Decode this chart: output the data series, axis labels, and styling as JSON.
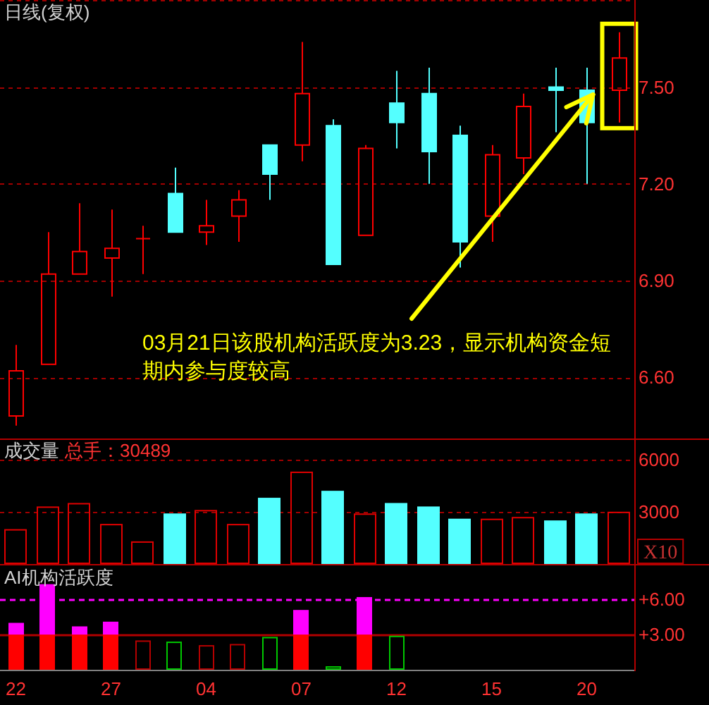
{
  "chart_data": [
    {
      "type": "candlestick",
      "title": "日线(复权)",
      "categories": [
        null,
        null,
        null,
        null,
        null,
        null,
        null,
        null,
        null,
        null,
        null,
        null,
        null,
        null,
        null,
        null,
        null,
        null,
        null,
        null
      ],
      "ohlc": [
        [
          6.48,
          6.7,
          6.45,
          6.62
        ],
        [
          6.64,
          7.05,
          6.64,
          6.92
        ],
        [
          6.92,
          7.14,
          6.92,
          6.99
        ],
        [
          6.97,
          7.12,
          6.85,
          7.0
        ],
        [
          7.03,
          7.07,
          6.92,
          7.03
        ],
        [
          7.17,
          7.25,
          7.05,
          7.05
        ],
        [
          7.05,
          7.15,
          7.01,
          7.07
        ],
        [
          7.1,
          7.18,
          7.02,
          7.15
        ],
        [
          7.32,
          7.32,
          7.15,
          7.23
        ],
        [
          7.32,
          7.64,
          7.27,
          7.48
        ],
        [
          7.38,
          7.4,
          6.95,
          6.95
        ],
        [
          7.04,
          7.32,
          7.04,
          7.31
        ],
        [
          7.45,
          7.55,
          7.31,
          7.39
        ],
        [
          7.48,
          7.56,
          7.2,
          7.3
        ],
        [
          7.35,
          7.38,
          6.94,
          7.02
        ],
        [
          7.1,
          7.32,
          7.02,
          7.29
        ],
        [
          7.28,
          7.48,
          7.23,
          7.44
        ],
        [
          7.5,
          7.56,
          7.36,
          7.49
        ],
        [
          7.49,
          7.56,
          7.2,
          7.39
        ],
        [
          7.49,
          7.67,
          7.39,
          7.59
        ]
      ],
      "colors": [
        "#ff0000",
        "#ff0000",
        "#ff0000",
        "#ff0000",
        "#ff0000",
        "#54ffff",
        "#ff0000",
        "#ff0000",
        "#54ffff",
        "#ff0000",
        "#54ffff",
        "#ff0000",
        "#54ffff",
        "#54ffff",
        "#54ffff",
        "#ff0000",
        "#ff0000",
        "#54ffff",
        "#54ffff",
        "#ff0000"
      ],
      "ylim": [
        6.41,
        7.77
      ],
      "yticks": [
        {
          "value": 7.5,
          "label": "7.50"
        },
        {
          "value": 7.2,
          "label": "7.20"
        },
        {
          "value": 6.9,
          "label": "6.90"
        },
        {
          "value": 6.6,
          "label": "6.60"
        }
      ],
      "grid": "y",
      "tick_labels": "y",
      "annotations": [
        "03月21日该股机构活跃度为3.23，显示机构资金短期内参与度较高"
      ]
    },
    {
      "type": "bar",
      "title": "成交量",
      "subtitle": "总手：30489",
      "ylabel": "X10",
      "categories": [
        null,
        null,
        null,
        null,
        null,
        null,
        null,
        null,
        null,
        null,
        null,
        null,
        null,
        null,
        null,
        null,
        null,
        null,
        null,
        null
      ],
      "values": [
        2000,
        3300,
        3500,
        2300,
        1300,
        2900,
        3100,
        2300,
        3800,
        5300,
        4200,
        2900,
        3500,
        3300,
        2600,
        2600,
        2700,
        2500,
        2900,
        3000
      ],
      "colors": [
        "#e00000",
        "#e00000",
        "#e00000",
        "#e00000",
        "#e00000",
        "#54ffff",
        "#e00000",
        "#e00000",
        "#54ffff",
        "#e00000",
        "#54ffff",
        "#e00000",
        "#54ffff",
        "#54ffff",
        "#54ffff",
        "#e00000",
        "#e00000",
        "#54ffff",
        "#54ffff",
        "#e00000"
      ],
      "ylim": [
        0,
        7200
      ],
      "yticks": [
        6000,
        3000
      ],
      "grid": "y",
      "tick_labels": "y"
    },
    {
      "type": "bar",
      "title": "AI机构活跃度",
      "categories": [
        "22",
        null,
        null,
        "27",
        null,
        null,
        "04",
        null,
        null,
        "07",
        null,
        null,
        "12",
        null,
        null,
        "15",
        null,
        null,
        "20",
        null
      ],
      "stacked": true,
      "series": [
        {
          "color": "#ff0000",
          "values": [
            3,
            3,
            3,
            3,
            null,
            null,
            null,
            null,
            null,
            3,
            null,
            3,
            null,
            null,
            null,
            null,
            null,
            null,
            null,
            null
          ]
        },
        {
          "color": "#ff00ff",
          "values": [
            1.0,
            4.3,
            0.7,
            1.1,
            null,
            null,
            null,
            null,
            null,
            2.1,
            null,
            3.2,
            null,
            null,
            null,
            null,
            null,
            null,
            null,
            null
          ]
        },
        {
          "color": "#b40000",
          "values": [
            null,
            null,
            null,
            null,
            2.5,
            null,
            2.1,
            2.2,
            null,
            null,
            null,
            null,
            null,
            null,
            null,
            null,
            null,
            null,
            null,
            null
          ]
        },
        {
          "color": "#00c800",
          "values": [
            null,
            null,
            null,
            null,
            null,
            2.4,
            null,
            null,
            2.8,
            null,
            0.3,
            null,
            2.9,
            null,
            null,
            null,
            null,
            null,
            null,
            null
          ]
        }
      ],
      "ylim": [
        0,
        8.9
      ],
      "yticks": [
        {
          "value": 6,
          "label": "+6.00"
        },
        {
          "value": 3,
          "label": "+3.00"
        }
      ],
      "ref_lines": [
        {
          "axis": "y",
          "value": 6,
          "color": "#ff00ff",
          "line_style": "dashed"
        },
        {
          "axis": "y",
          "value": 3,
          "color": "#b00000",
          "line_style": "solid"
        }
      ]
    }
  ]
}
